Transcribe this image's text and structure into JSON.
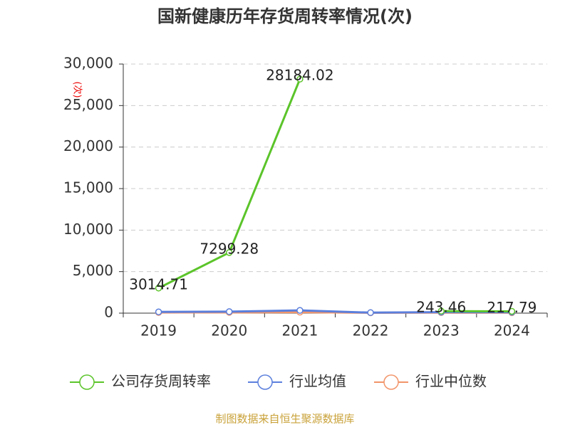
{
  "chart_data": {
    "type": "line",
    "title": "国新健康历年存货周转率情况(次)",
    "y_label": "(次)",
    "source": "制图数据来自恒生聚源数据库",
    "categories": [
      "2019",
      "2020",
      "2021",
      "2022",
      "2023",
      "2024"
    ],
    "series": [
      {
        "name": "公司存货周转率",
        "color": "#5bc42a",
        "values": [
          3014.71,
          7299.28,
          28184.02,
          null,
          243.46,
          217.79
        ]
      },
      {
        "name": "行业均值",
        "color": "#5b7fdc",
        "values": [
          150,
          180,
          330,
          60,
          120,
          110
        ]
      },
      {
        "name": "行业中位数",
        "color": "#f2956a",
        "values": [
          80,
          90,
          120,
          40,
          60,
          50
        ]
      }
    ],
    "ylim": [
      0,
      30000
    ],
    "yticks": [
      0,
      {
        "value": 5000,
        "label": "5,000"
      },
      {
        "value": 10000,
        "label": "10,000"
      },
      {
        "value": 15000,
        "label": "15,000"
      },
      {
        "value": 20000,
        "label": "20,000"
      },
      {
        "value": 25000,
        "label": "25,000"
      },
      {
        "value": 30000,
        "label": "30,000"
      }
    ],
    "grid": true,
    "legend": "bottom"
  }
}
